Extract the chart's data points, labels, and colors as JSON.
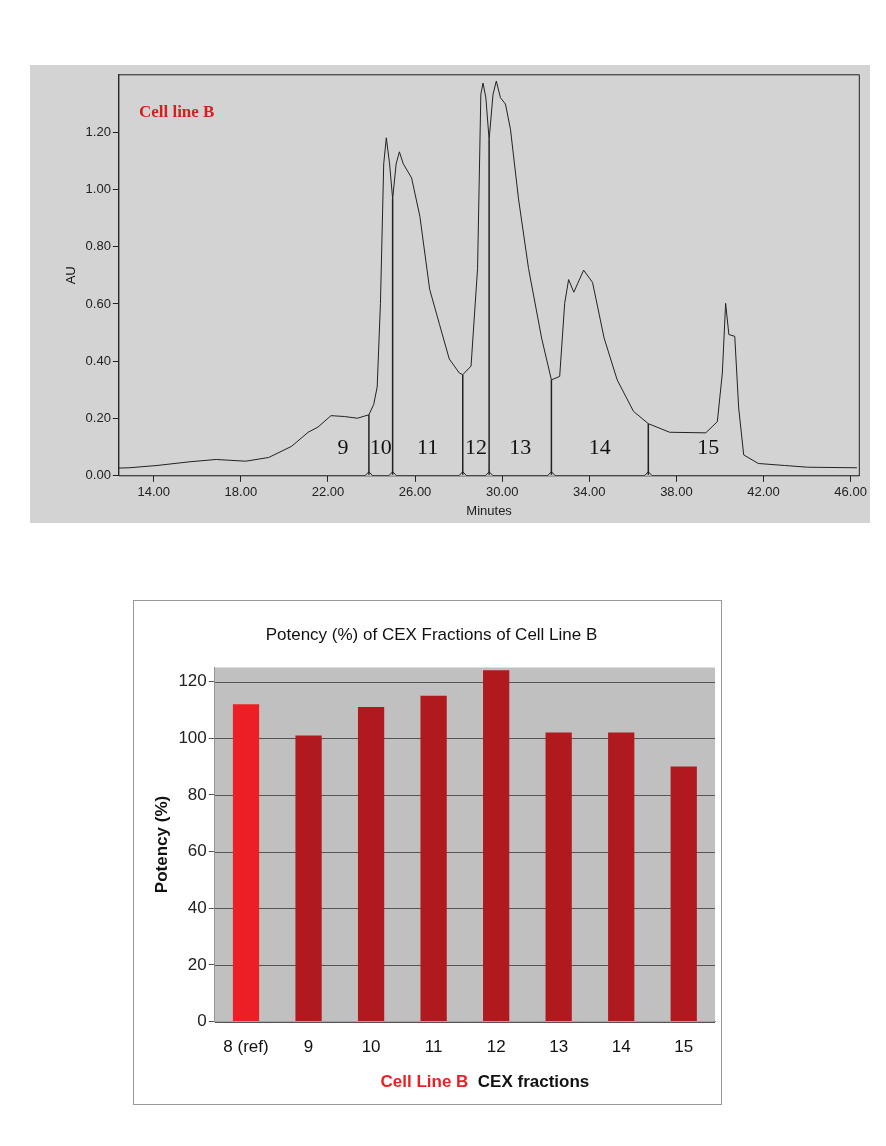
{
  "chart_data": [
    {
      "type": "line",
      "xlabel": "Minutes",
      "ylabel": "AU",
      "annotations": [
        "Cell line B",
        "9",
        "10",
        "11",
        "12",
        "13",
        "14",
        "15"
      ],
      "series": [
        {
          "color": "#222222",
          "x": [
            12.4,
            12.87,
            14.15,
            15.66,
            16.87,
            18.22,
            19.28,
            20.33,
            21.09,
            21.54,
            22.14,
            22.75,
            23.35,
            23.88,
            24.1,
            24.26,
            24.41,
            24.56,
            24.68,
            24.83,
            24.97,
            25.13,
            25.28,
            25.46,
            25.84,
            26.22,
            26.67,
            27.12,
            27.57,
            28.03,
            28.19,
            28.57,
            28.87,
            29.02,
            29.12,
            29.25,
            29.4,
            29.58,
            29.73,
            29.92,
            30.15,
            30.38,
            30.75,
            31.21,
            31.81,
            32.26,
            32.64,
            32.87,
            33.05,
            33.29,
            33.74,
            34.15,
            34.68,
            35.28,
            36.03,
            36.71,
            37.69,
            39.35,
            39.88,
            40.11,
            40.26,
            40.41,
            40.68,
            40.86,
            41.09,
            41.76,
            42.97,
            44.03,
            46.29
          ],
          "values": [
            0.027,
            0.028,
            0.036,
            0.049,
            0.057,
            0.051,
            0.064,
            0.103,
            0.152,
            0.17,
            0.21,
            0.207,
            0.201,
            0.213,
            0.249,
            0.31,
            0.602,
            1.089,
            1.18,
            1.089,
            0.967,
            1.089,
            1.131,
            1.089,
            1.04,
            0.906,
            0.651,
            0.529,
            0.408,
            0.359,
            0.353,
            0.383,
            0.724,
            1.332,
            1.371,
            1.32,
            1.174,
            1.332,
            1.378,
            1.32,
            1.298,
            1.21,
            0.967,
            0.724,
            0.481,
            0.335,
            0.347,
            0.602,
            0.685,
            0.641,
            0.718,
            0.675,
            0.481,
            0.335,
            0.225,
            0.182,
            0.152,
            0.15,
            0.189,
            0.359,
            0.602,
            0.493,
            0.487,
            0.237,
            0.073,
            0.043,
            0.036,
            0.03,
            0.028
          ]
        },
        {
          "type": "scatter",
          "marker": "diamond",
          "color": "#222222",
          "x": [
            23.88,
            24.97,
            28.19,
            29.4,
            32.26,
            36.71
          ],
          "values": [
            0,
            0,
            0,
            0,
            0,
            0
          ]
        }
      ],
      "ref_lines": [
        {
          "axis": "x",
          "value": 23.88
        },
        {
          "axis": "x",
          "value": 24.97
        },
        {
          "axis": "x",
          "value": 28.19
        },
        {
          "axis": "x",
          "value": 29.4
        },
        {
          "axis": "x",
          "value": 32.26
        },
        {
          "axis": "x",
          "value": 36.71
        }
      ],
      "xlim": [
        12.4,
        46.4
      ],
      "ylim": [
        0,
        1.4
      ],
      "xticks": [
        {
          "value": 14,
          "label": "14.00"
        },
        {
          "value": 18,
          "label": "18.00"
        },
        {
          "value": 22,
          "label": "22.00"
        },
        {
          "value": 26,
          "label": "26.00"
        },
        {
          "value": 30,
          "label": "30.00"
        },
        {
          "value": 34,
          "label": "34.00"
        },
        {
          "value": 38,
          "label": "38.00"
        },
        {
          "value": 42,
          "label": "42.00"
        },
        {
          "value": 46,
          "label": "46.00"
        }
      ],
      "yticks": [
        {
          "value": 0,
          "label": "0.00"
        },
        {
          "value": 0.2,
          "label": "0.20"
        },
        {
          "value": 0.4,
          "label": "0.40"
        },
        {
          "value": 0.6,
          "label": "0.60"
        },
        {
          "value": 0.8,
          "label": "0.80"
        },
        {
          "value": 1,
          "label": "1.00"
        },
        {
          "value": 1.2,
          "label": "1.20"
        }
      ],
      "grid": false,
      "legend": false
    },
    {
      "type": "bar",
      "title": "Potency (%) of CEX Fractions of Cell Line B",
      "xlabel": "CEX fractions",
      "ylabel": "Potency (%)",
      "annotations": [
        "Cell Line B"
      ],
      "categories": [
        "8 (ref)",
        "9",
        "10",
        "11",
        "12",
        "13",
        "14",
        "15"
      ],
      "values": [
        112,
        101,
        111,
        115,
        124,
        102,
        102,
        90
      ],
      "colors": [
        "#ec2024",
        "#b01a1e",
        "#b01a1e",
        "#b01a1e",
        "#b01a1e",
        "#b01a1e",
        "#b01a1e",
        "#b01a1e"
      ],
      "ylim": [
        0,
        125
      ],
      "yticks": [
        0,
        20,
        40,
        60,
        80,
        100,
        120
      ],
      "grid": "y",
      "legend": false
    }
  ]
}
